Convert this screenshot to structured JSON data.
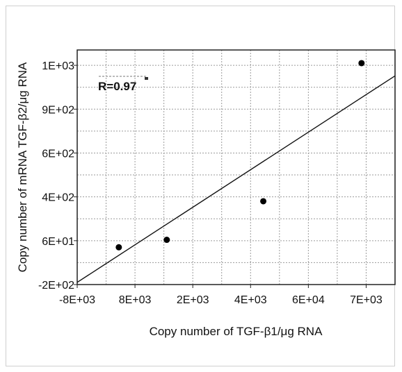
{
  "chart_data": {
    "type": "scatter",
    "xlabel": "Copy number of TGF-β1/μg RNA",
    "ylabel": "Copy number of mRNA TGF-β2/μg RNA",
    "x_tick_labels": [
      "-8E+03",
      "8E+03",
      "2E+03",
      "4E+03",
      "6E+04",
      "7E+03"
    ],
    "y_tick_labels": [
      "-2E+02",
      "6E+01",
      "4E+02",
      "6E+02",
      "9E+02",
      "1E+03"
    ],
    "annotation": "R=0.97",
    "grid": true,
    "x_range": [
      0,
      5.5
    ],
    "y_range": [
      0,
      5.35
    ],
    "points": [
      {
        "x": 0.72,
        "y": 0.85
      },
      {
        "x": 1.55,
        "y": 1.02
      },
      {
        "x": 3.22,
        "y": 1.9
      },
      {
        "x": 4.92,
        "y": 5.05
      }
    ],
    "trendline": {
      "x": [
        0,
        5.5
      ],
      "y": [
        0.05,
        4.76
      ]
    }
  }
}
